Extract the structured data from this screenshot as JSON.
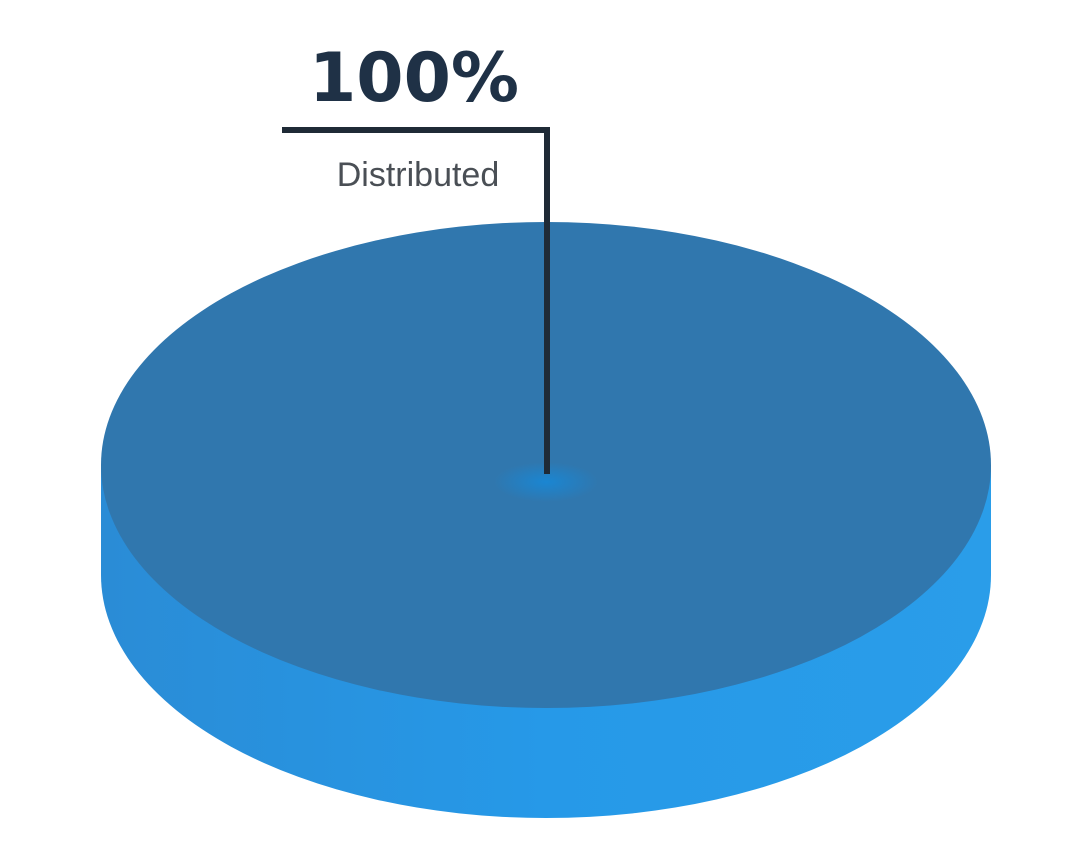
{
  "chart_data": {
    "type": "pie",
    "style": "3d",
    "slices": [
      {
        "label": "Distributed",
        "value": 100,
        "value_label": "100%",
        "color": "#3077ae"
      }
    ],
    "colors": {
      "top_face": "#3077ae",
      "side_face": "#2699e8",
      "center_glow": "#1a86d2",
      "leader_line": "#1f2a36"
    },
    "legend": "none"
  }
}
